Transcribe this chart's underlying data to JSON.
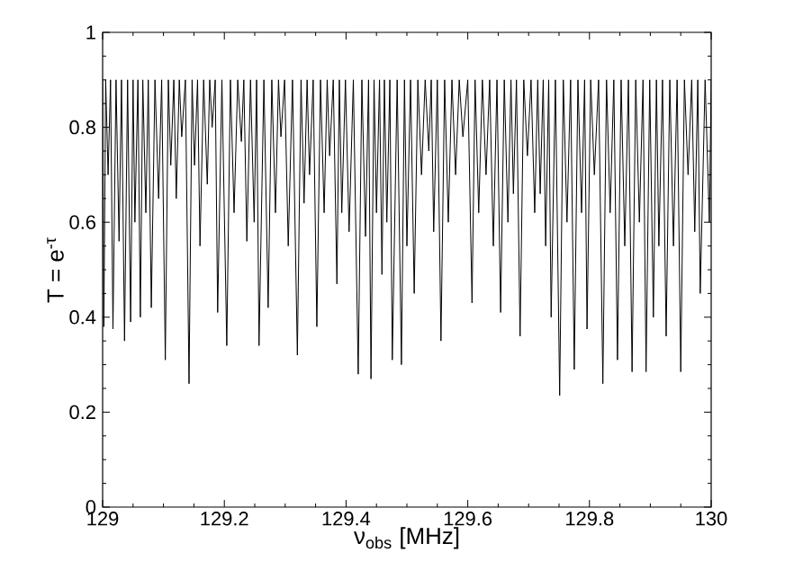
{
  "chart_data": {
    "type": "line",
    "xlabel": "ν$_{obs}$ [MHz]",
    "ylabel": "T = e$^{-τ}$",
    "xlim": [
      129,
      130
    ],
    "xticks": [
      129,
      129.2,
      129.4,
      129.6,
      129.8,
      130
    ],
    "ylim": [
      0,
      1
    ],
    "yticks": [
      0,
      0.2,
      0.4,
      0.6,
      0.8,
      1
    ],
    "marker": "none",
    "line_style": "solid",
    "series": [
      {
        "color": "#000000",
        "x": [
          129.0,
          129.002,
          129.005,
          129.009,
          129.013,
          129.017,
          129.022,
          129.027,
          129.031,
          129.036,
          129.041,
          129.046,
          129.05,
          129.053,
          129.058,
          129.062,
          129.066,
          129.071,
          129.075,
          129.08,
          129.086,
          129.092,
          129.097,
          129.103,
          129.108,
          129.112,
          129.117,
          129.121,
          129.126,
          129.13,
          129.136,
          129.142,
          129.147,
          129.151,
          129.156,
          129.16,
          129.166,
          129.172,
          129.176,
          129.18,
          129.185,
          129.189,
          129.196,
          129.204,
          129.21,
          129.216,
          129.222,
          129.228,
          129.232,
          129.237,
          129.243,
          129.249,
          129.253,
          129.257,
          129.265,
          129.272,
          129.278,
          129.284,
          129.289,
          129.293,
          129.299,
          129.305,
          129.312,
          129.32,
          129.326,
          129.331,
          129.336,
          129.34,
          129.346,
          129.352,
          129.358,
          129.364,
          129.369,
          129.373,
          129.379,
          129.385,
          129.389,
          129.393,
          129.399,
          129.405,
          129.412,
          129.42,
          129.426,
          129.432,
          129.437,
          129.441,
          129.446,
          129.45,
          129.455,
          129.459,
          129.463,
          129.467,
          129.472,
          129.476,
          129.484,
          129.491,
          129.496,
          129.5,
          129.506,
          129.512,
          129.518,
          129.524,
          129.53,
          129.536,
          129.54,
          129.544,
          129.55,
          129.556,
          129.562,
          129.568,
          129.574,
          129.58,
          129.586,
          129.592,
          129.6,
          129.607,
          129.612,
          129.618,
          129.624,
          129.63,
          129.636,
          129.642,
          129.648,
          129.654,
          129.66,
          129.666,
          129.671,
          129.675,
          129.68,
          129.686,
          129.692,
          129.698,
          129.704,
          129.71,
          129.715,
          129.719,
          129.724,
          129.728,
          129.733,
          129.737,
          129.744,
          129.751,
          129.757,
          129.763,
          129.769,
          129.775,
          129.781,
          129.787,
          129.792,
          129.796,
          129.802,
          129.808,
          129.815,
          129.822,
          129.828,
          129.834,
          129.84,
          129.846,
          129.852,
          129.858,
          129.864,
          129.87,
          129.876,
          129.882,
          129.888,
          129.893,
          129.899,
          129.905,
          129.91,
          129.914,
          129.92,
          129.926,
          129.932,
          129.938,
          129.944,
          129.95,
          129.956,
          129.962,
          129.968,
          129.973,
          129.978,
          129.982,
          129.99,
          129.997,
          130.0
        ],
        "values": [
          0.9,
          0.38,
          0.9,
          0.7,
          0.9,
          0.375,
          0.9,
          0.56,
          0.9,
          0.35,
          0.9,
          0.39,
          0.9,
          0.6,
          0.9,
          0.4,
          0.9,
          0.62,
          0.9,
          0.42,
          0.9,
          0.65,
          0.9,
          0.31,
          0.9,
          0.72,
          0.9,
          0.65,
          0.9,
          0.78,
          0.9,
          0.26,
          0.9,
          0.72,
          0.9,
          0.55,
          0.9,
          0.68,
          0.9,
          0.8,
          0.9,
          0.41,
          0.9,
          0.34,
          0.9,
          0.62,
          0.9,
          0.77,
          0.9,
          0.56,
          0.9,
          0.6,
          0.9,
          0.34,
          0.9,
          0.42,
          0.9,
          0.62,
          0.9,
          0.78,
          0.9,
          0.55,
          0.9,
          0.32,
          0.9,
          0.64,
          0.9,
          0.7,
          0.9,
          0.38,
          0.9,
          0.62,
          0.9,
          0.74,
          0.9,
          0.47,
          0.9,
          0.62,
          0.9,
          0.58,
          0.9,
          0.28,
          0.9,
          0.57,
          0.9,
          0.27,
          0.9,
          0.62,
          0.9,
          0.49,
          0.9,
          0.6,
          0.9,
          0.31,
          0.9,
          0.3,
          0.9,
          0.55,
          0.9,
          0.45,
          0.9,
          0.7,
          0.9,
          0.75,
          0.9,
          0.58,
          0.9,
          0.35,
          0.9,
          0.6,
          0.9,
          0.7,
          0.9,
          0.78,
          0.9,
          0.43,
          0.9,
          0.62,
          0.9,
          0.7,
          0.9,
          0.55,
          0.9,
          0.41,
          0.9,
          0.6,
          0.9,
          0.66,
          0.9,
          0.36,
          0.9,
          0.74,
          0.9,
          0.62,
          0.9,
          0.66,
          0.9,
          0.55,
          0.9,
          0.4,
          0.9,
          0.235,
          0.9,
          0.6,
          0.9,
          0.29,
          0.9,
          0.62,
          0.9,
          0.375,
          0.9,
          0.7,
          0.9,
          0.26,
          0.9,
          0.62,
          0.9,
          0.31,
          0.9,
          0.55,
          0.9,
          0.285,
          0.9,
          0.6,
          0.9,
          0.285,
          0.9,
          0.4,
          0.9,
          0.55,
          0.9,
          0.36,
          0.9,
          0.55,
          0.9,
          0.285,
          0.9,
          0.7,
          0.9,
          0.58,
          0.9,
          0.45,
          0.9,
          0.6,
          0.9
        ]
      }
    ]
  }
}
